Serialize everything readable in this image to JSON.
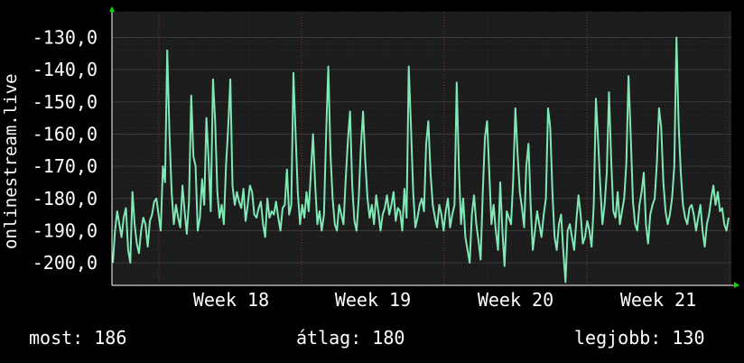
{
  "chart_data": {
    "type": "line",
    "ylabel": "onlinestream.live",
    "xlabel": "",
    "title": "",
    "x_tick_labels": [
      "Week 18",
      "Week 19",
      "Week 20",
      "Week 21"
    ],
    "y_tick_labels": [
      "-130,0",
      "-140,0",
      "-150,0",
      "-160,0",
      "-170,0",
      "-180,0",
      "-190,0",
      "-200,0"
    ],
    "ylim": [
      -207,
      -122
    ],
    "grid": true,
    "colors": {
      "background": "#000000",
      "plot_background": "#1c1c1c",
      "grid_major": "#3a3a3a",
      "grid_minor": "#2a2a2a",
      "vertical_grid": "#8a3030",
      "line": "#7fe8b5",
      "axis": "#ffffff",
      "arrow": "#00dd00"
    },
    "series": [
      {
        "values": [
          -200,
          -190,
          -184,
          -188,
          -192,
          -186,
          -183,
          -196,
          -200,
          -178,
          -188,
          -194,
          -197,
          -190,
          -186,
          -188,
          -195,
          -187,
          -185,
          -181,
          -180,
          -185,
          -190,
          -170,
          -175,
          -134,
          -160,
          -178,
          -188,
          -182,
          -186,
          -189,
          -176,
          -184,
          -191,
          -181,
          -148,
          -167,
          -170,
          -190,
          -186,
          -174,
          -182,
          -155,
          -168,
          -184,
          -143,
          -156,
          -178,
          -186,
          -182,
          -188,
          -170,
          -158,
          -143,
          -176,
          -182,
          -178,
          -181,
          -183,
          -177,
          -187,
          -182,
          -176,
          -178,
          -185,
          -186,
          -183,
          -181,
          -188,
          -192,
          -180,
          -186,
          -184,
          -185,
          -181,
          -186,
          -190,
          -183,
          -182,
          -171,
          -185,
          -182,
          -141,
          -160,
          -178,
          -188,
          -182,
          -186,
          -178,
          -184,
          -172,
          -160,
          -176,
          -188,
          -184,
          -190,
          -185,
          -160,
          -139,
          -166,
          -180,
          -188,
          -190,
          -182,
          -185,
          -188,
          -174,
          -162,
          -153,
          -176,
          -187,
          -190,
          -180,
          -164,
          -153,
          -168,
          -180,
          -186,
          -182,
          -188,
          -179,
          -184,
          -190,
          -185,
          -183,
          -179,
          -185,
          -182,
          -178,
          -187,
          -183,
          -184,
          -190,
          -177,
          -186,
          -139,
          -158,
          -178,
          -189,
          -186,
          -182,
          -180,
          -184,
          -163,
          -156,
          -172,
          -182,
          -186,
          -189,
          -182,
          -185,
          -190,
          -184,
          -180,
          -189,
          -185,
          -182,
          -144,
          -170,
          -188,
          -180,
          -192,
          -196,
          -200,
          -185,
          -179,
          -188,
          -193,
          -199,
          -178,
          -161,
          -156,
          -172,
          -188,
          -182,
          -190,
          -196,
          -175,
          -190,
          -201,
          -184,
          -186,
          -188,
          -174,
          -152,
          -166,
          -178,
          -183,
          -189,
          -170,
          -163,
          -182,
          -196,
          -190,
          -184,
          -188,
          -192,
          -185,
          -180,
          -152,
          -158,
          -178,
          -192,
          -196,
          -188,
          -185,
          -196,
          -206,
          -190,
          -188,
          -192,
          -196,
          -187,
          -179,
          -185,
          -194,
          -192,
          -187,
          -190,
          -195,
          -182,
          -149,
          -162,
          -176,
          -188,
          -182,
          -172,
          -147,
          -168,
          -184,
          -186,
          -178,
          -188,
          -184,
          -180,
          -169,
          -142,
          -161,
          -181,
          -188,
          -190,
          -182,
          -178,
          -172,
          -188,
          -194,
          -185,
          -182,
          -180,
          -169,
          -152,
          -158,
          -175,
          -184,
          -188,
          -185,
          -180,
          -170,
          -130,
          -157,
          -172,
          -182,
          -186,
          -188,
          -183,
          -182,
          -185,
          -190,
          -186,
          -182,
          -190,
          -195,
          -188,
          -185,
          -180,
          -176,
          -182,
          -178,
          -184,
          -183,
          -188,
          -190,
          -186
        ],
        "x_range_note": ""
      }
    ]
  },
  "footer": {
    "now": "most: 186",
    "avg": "átlag: 180",
    "best": "legjobb: 130"
  }
}
